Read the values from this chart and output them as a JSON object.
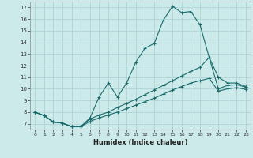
{
  "xlabel": "Humidex (Indice chaleur)",
  "bg_color": "#cdeaea",
  "line_color": "#1a6b6b",
  "grid_color": "#afd4d4",
  "xlim": [
    -0.5,
    23.5
  ],
  "ylim": [
    6.5,
    17.5
  ],
  "xticks": [
    0,
    1,
    2,
    3,
    4,
    5,
    6,
    7,
    8,
    9,
    10,
    11,
    12,
    13,
    14,
    15,
    16,
    17,
    18,
    19,
    20,
    21,
    22,
    23
  ],
  "yticks": [
    7,
    8,
    9,
    10,
    11,
    12,
    13,
    14,
    15,
    16,
    17
  ],
  "line1_x": [
    0,
    1,
    2,
    3,
    4,
    5,
    6,
    7,
    8,
    9,
    10,
    11,
    12,
    13,
    14,
    15,
    16,
    17,
    18,
    19,
    20,
    21,
    22,
    23
  ],
  "line1_y": [
    8.0,
    7.7,
    7.15,
    7.05,
    6.75,
    6.75,
    7.5,
    9.3,
    10.5,
    9.3,
    10.5,
    12.3,
    13.5,
    13.9,
    15.9,
    17.1,
    16.55,
    16.65,
    15.5,
    12.7,
    11.0,
    10.5,
    10.5,
    10.2
  ],
  "line2_x": [
    0,
    1,
    2,
    3,
    4,
    5,
    6,
    7,
    8,
    9,
    10,
    11,
    12,
    13,
    14,
    15,
    16,
    17,
    18,
    19,
    20,
    21,
    22,
    23
  ],
  "line2_y": [
    8.0,
    7.7,
    7.15,
    7.05,
    6.75,
    6.75,
    7.4,
    7.75,
    8.0,
    8.4,
    8.75,
    9.1,
    9.5,
    9.9,
    10.3,
    10.7,
    11.1,
    11.5,
    11.85,
    12.7,
    10.0,
    10.3,
    10.35,
    10.15
  ],
  "line3_x": [
    0,
    1,
    2,
    3,
    4,
    5,
    6,
    7,
    8,
    9,
    10,
    11,
    12,
    13,
    14,
    15,
    16,
    17,
    18,
    19,
    20,
    21,
    22,
    23
  ],
  "line3_y": [
    8.0,
    7.7,
    7.15,
    7.05,
    6.75,
    6.75,
    7.2,
    7.5,
    7.75,
    8.0,
    8.3,
    8.6,
    8.9,
    9.2,
    9.55,
    9.9,
    10.2,
    10.5,
    10.7,
    10.9,
    9.8,
    10.0,
    10.1,
    9.95
  ]
}
